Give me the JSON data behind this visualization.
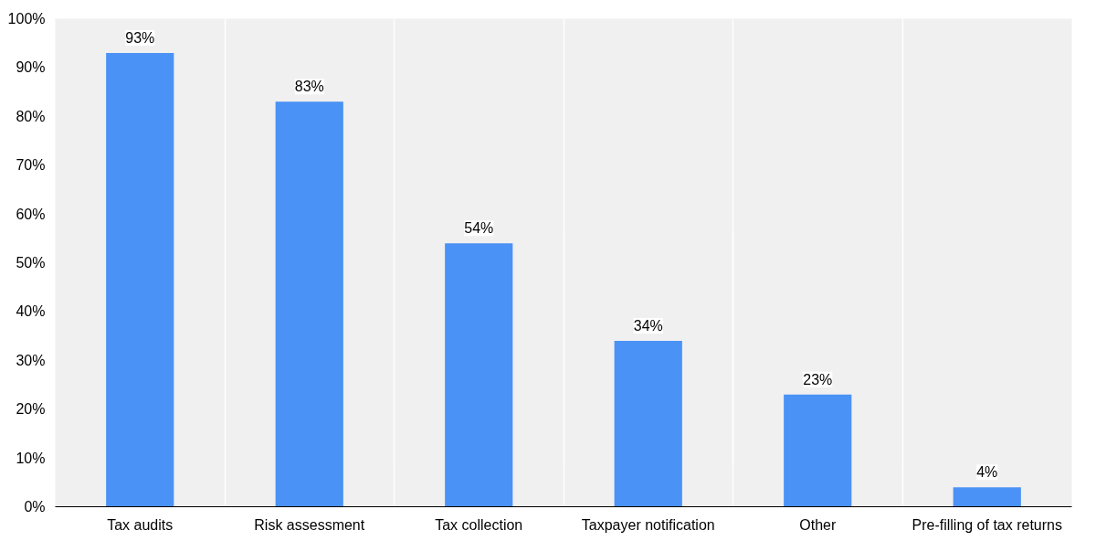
{
  "chart_data": {
    "type": "bar",
    "categories": [
      "Tax audits",
      "Risk assessment",
      "Tax collection",
      "Taxpayer notification",
      "Other",
      "Pre-filling of tax returns"
    ],
    "values": [
      93,
      83,
      54,
      34,
      23,
      4
    ],
    "value_labels": [
      "93%",
      "83%",
      "54%",
      "34%",
      "23%",
      "4%"
    ],
    "color": "#4a92f5",
    "ylim": [
      0,
      100
    ],
    "yticks": [
      {
        "value": 0,
        "label": "0%"
      },
      {
        "value": 10,
        "label": "10%"
      },
      {
        "value": 20,
        "label": "20%"
      },
      {
        "value": 30,
        "label": "30%"
      },
      {
        "value": 40,
        "label": "40%"
      },
      {
        "value": 50,
        "label": "50%"
      },
      {
        "value": 60,
        "label": "60%"
      },
      {
        "value": 70,
        "label": "70%"
      },
      {
        "value": 80,
        "label": "80%"
      },
      {
        "value": 90,
        "label": "90%"
      },
      {
        "value": 100,
        "label": "100%"
      }
    ],
    "grid": "x"
  }
}
